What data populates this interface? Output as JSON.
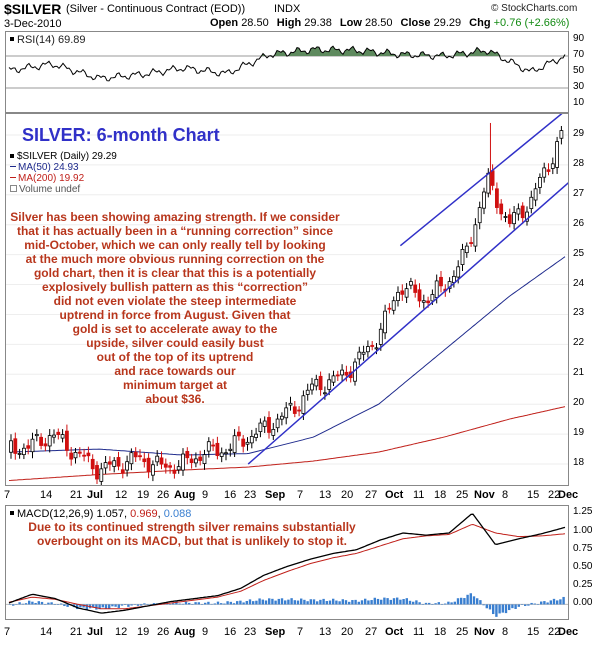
{
  "header": {
    "title": "$SILVER",
    "subtitle": "(Silver - Continuous Contract (EOD))",
    "exchange": "INDX",
    "date": "3-Dec-2010",
    "ohlc": {
      "open_label": "Open",
      "open": "28.50",
      "high_label": "High",
      "high": "29.38",
      "low_label": "Low",
      "low": "28.50",
      "close_label": "Close",
      "close": "29.29",
      "chg_label": "Chg",
      "chg": "+0.76 (+2.66%)"
    },
    "copyright": "© StockCharts.com"
  },
  "rsi": {
    "legend": "RSI(14) 69.89",
    "ticks": [
      "90",
      "70",
      "50",
      "30",
      "10"
    ]
  },
  "main": {
    "chart_title": "SILVER: 6-month Chart",
    "legend": {
      "price": "$SILVER (Daily) 29.29",
      "ma50": "MA(50) 24.93",
      "ma200": "MA(200) 19.92",
      "volume": "Volume undef"
    },
    "annotation_lines": [
      "Silver has been showing amazing strength. If we consider",
      "that it has actually been in a “running correction” since",
      "mid-October, which we can only really tell by looking",
      "at the much more obvious running correction on the",
      "gold chart, then it is clear that this is a potentially",
      "explosively bullish pattern as this “correction”",
      "did not even violate the steep intermediate",
      "uptrend in force from August. Given that",
      "gold is set to accelerate away to the",
      "upside, silver could easily bust",
      "out of the top of its uptrend",
      "and race towards our",
      "minimum target at",
      "about $36."
    ],
    "y_ticks": [
      "29",
      "28",
      "27",
      "26",
      "25",
      "24",
      "23",
      "22",
      "21",
      "20",
      "19",
      "18"
    ]
  },
  "x_axis_labels": [
    "7",
    "14",
    "21",
    "Jul",
    "12",
    "19",
    "26",
    "Aug",
    "9",
    "16",
    "23",
    "Sep",
    "7",
    "13",
    "20",
    "27",
    "Oct",
    "11",
    "18",
    "25",
    "Nov",
    "8",
    "15",
    "22",
    "Dec"
  ],
  "macd": {
    "legend_prefix": "MACD(12,26,9)",
    "legend_macd": "1.057",
    "legend_signal": "0.969",
    "legend_hist": "0.088",
    "annotation_lines": [
      "Due to its continued strength silver remains substantially",
      "overbought on its MACD, but that is unlikely to stop it."
    ],
    "y_ticks": [
      "1.25",
      "1.00",
      "0.75",
      "0.50",
      "0.25",
      "0.00"
    ]
  },
  "colors": {
    "up_candle": "#000000",
    "down_candle": "#d01010",
    "ma50": "#1e2a8c",
    "ma200": "#c0201a",
    "trendline": "#3030c8",
    "rsi_fill": "#5e8a5e",
    "macd_hist": "#3a7fd0",
    "chart_title": "#3030c8",
    "annotation": "#b8361c"
  },
  "chart_data": [
    {
      "type": "line",
      "title": "RSI(14)",
      "ylim": [
        0,
        100
      ],
      "reference_lines": [
        70,
        30
      ],
      "series": [
        {
          "name": "RSI(14)",
          "x": [
            "2010-06-07",
            "2010-06-21",
            "2010-07-06",
            "2010-07-20",
            "2010-08-02",
            "2010-08-16",
            "2010-08-30",
            "2010-09-13",
            "2010-09-27",
            "2010-10-11",
            "2010-10-25",
            "2010-11-08",
            "2010-11-22",
            "2010-12-03"
          ],
          "values": [
            52,
            60,
            42,
            47,
            55,
            48,
            72,
            78,
            77,
            72,
            70,
            77,
            50,
            70
          ]
        }
      ]
    },
    {
      "type": "line",
      "title": "$SILVER (Daily) 29.29",
      "ylim": [
        17.3,
        29.7
      ],
      "series": [
        {
          "name": "$SILVER",
          "x": [
            "2010-06-07",
            "2010-06-14",
            "2010-06-21",
            "2010-06-28",
            "2010-07-06",
            "2010-07-12",
            "2010-07-19",
            "2010-07-26",
            "2010-08-02",
            "2010-08-09",
            "2010-08-16",
            "2010-08-23",
            "2010-08-30",
            "2010-09-07",
            "2010-09-13",
            "2010-09-20",
            "2010-09-27",
            "2010-10-04",
            "2010-10-11",
            "2010-10-18",
            "2010-10-25",
            "2010-11-01",
            "2010-11-08",
            "2010-11-15",
            "2010-11-22",
            "2010-11-29",
            "2010-12-03"
          ],
          "values": [
            18.5,
            18.6,
            19.0,
            18.4,
            17.8,
            18.0,
            18.2,
            17.9,
            18.0,
            18.4,
            18.5,
            18.9,
            19.3,
            19.9,
            20.6,
            20.8,
            21.4,
            22.3,
            24.0,
            23.5,
            23.9,
            25.0,
            27.5,
            26.0,
            26.8,
            28.3,
            29.29
          ]
        },
        {
          "name": "MA(50)",
          "x": [
            "2010-06-07",
            "2010-07-06",
            "2010-08-02",
            "2010-08-23",
            "2010-09-13",
            "2010-10-04",
            "2010-10-25",
            "2010-11-15",
            "2010-12-03"
          ],
          "values": [
            18.4,
            18.5,
            18.3,
            18.35,
            18.9,
            20.0,
            21.8,
            23.6,
            24.93
          ]
        },
        {
          "name": "MA(200)",
          "x": [
            "2010-06-07",
            "2010-07-06",
            "2010-08-02",
            "2010-08-23",
            "2010-09-13",
            "2010-10-04",
            "2010-10-25",
            "2010-11-15",
            "2010-12-03"
          ],
          "values": [
            17.45,
            17.65,
            17.8,
            17.9,
            18.1,
            18.4,
            18.9,
            19.5,
            19.92
          ]
        }
      ],
      "trendlines": [
        {
          "name": "lower",
          "from": [
            "2010-08-23",
            18.0
          ],
          "to": [
            "2010-12-03",
            27.3
          ]
        },
        {
          "name": "upper",
          "from": [
            "2010-10-11",
            25.3
          ],
          "to": [
            "2010-12-03",
            29.8
          ]
        }
      ]
    },
    {
      "type": "line",
      "title": "MACD(12,26,9)",
      "ylim": [
        -0.2,
        1.35
      ],
      "series": [
        {
          "name": "MACD",
          "values": [
            0.02,
            0.14,
            0.08,
            -0.05,
            -0.12,
            -0.08,
            -0.02,
            0.04,
            0.08,
            0.12,
            0.22,
            0.4,
            0.52,
            0.62,
            0.7,
            0.75,
            0.88,
            0.98,
            0.95,
            0.98,
            1.25,
            0.82,
            0.9,
            0.97,
            1.057
          ]
        },
        {
          "name": "Signal",
          "values": [
            0.03,
            0.1,
            0.07,
            0.0,
            -0.06,
            -0.06,
            -0.02,
            0.02,
            0.06,
            0.1,
            0.18,
            0.33,
            0.45,
            0.56,
            0.64,
            0.7,
            0.8,
            0.9,
            0.94,
            0.96,
            1.1,
            0.98,
            0.93,
            0.94,
            0.969
          ]
        },
        {
          "name": "Histogram",
          "values": [
            -0.01,
            0.04,
            0.01,
            -0.05,
            -0.06,
            -0.02,
            0.0,
            0.02,
            0.02,
            0.02,
            0.04,
            0.07,
            0.07,
            0.06,
            0.06,
            0.05,
            0.08,
            0.08,
            0.01,
            0.02,
            0.15,
            -0.16,
            -0.03,
            0.03,
            0.088
          ]
        }
      ]
    }
  ]
}
